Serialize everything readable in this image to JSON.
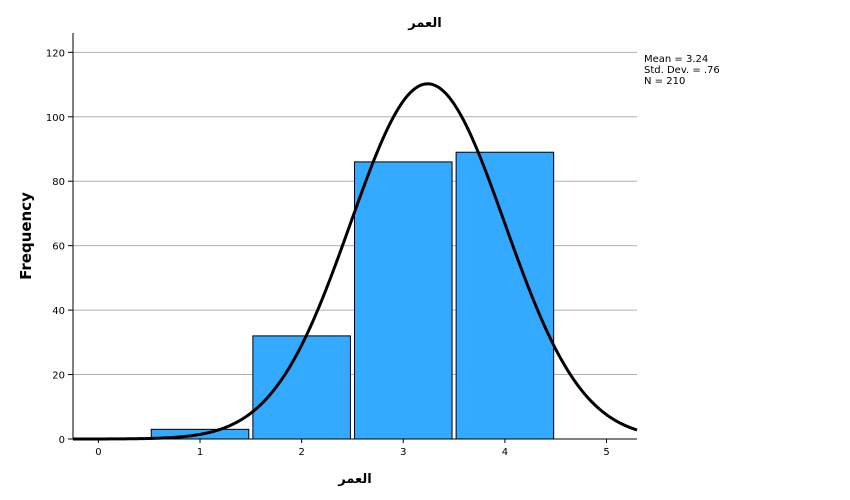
{
  "chart_data": {
    "type": "bar",
    "title": "العمر",
    "xlabel": "العمر",
    "ylabel": "Frequency",
    "xlim": [
      -0.25,
      5.3
    ],
    "ylim": [
      0,
      126
    ],
    "x_ticks": [
      0,
      1,
      2,
      3,
      4,
      5
    ],
    "y_ticks": [
      0,
      20,
      40,
      60,
      80,
      100,
      120
    ],
    "grid": true,
    "bars": [
      {
        "x": 1,
        "value": 3
      },
      {
        "x": 2,
        "value": 32
      },
      {
        "x": 3,
        "value": 86
      },
      {
        "x": 4,
        "value": 89
      }
    ],
    "normal_curve": {
      "mean": 3.24,
      "std_dev": 0.76,
      "n": 210
    },
    "stats": {
      "mean_label": "Mean = 3.24",
      "std_label": "Std. Dev. = .76",
      "n_label": "N = 210"
    },
    "colors": {
      "bar_fill": "#33aaff",
      "bar_stroke": "#000000",
      "curve": "#000000",
      "grid": "#b0b0b0"
    }
  }
}
